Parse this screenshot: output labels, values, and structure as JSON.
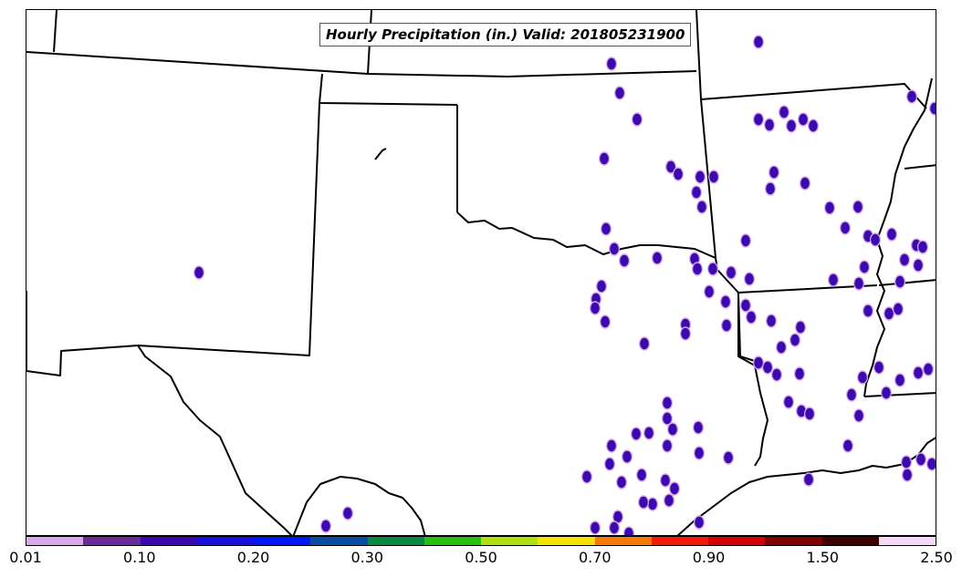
{
  "map": {
    "title": "Hourly Precipitation (in.) Valid: 201805231900",
    "type": "precipitation-map",
    "line_color": "#000000",
    "background": "#ffffff"
  },
  "colorbar": {
    "colors": [
      "#d8a8e8",
      "#6a2a9a",
      "#3a0ab0",
      "#1a10e0",
      "#0018f8",
      "#0a4ca0",
      "#0a8a40",
      "#2ac010",
      "#b0e010",
      "#f8e000",
      "#f87808",
      "#f81808",
      "#d80000",
      "#800000",
      "#400000",
      "#f8d8f8"
    ],
    "tick_labels": [
      "0.01",
      "0.10",
      "0.20",
      "0.30",
      "0.50",
      "0.70",
      "0.90",
      "1.50",
      "2.50"
    ]
  }
}
